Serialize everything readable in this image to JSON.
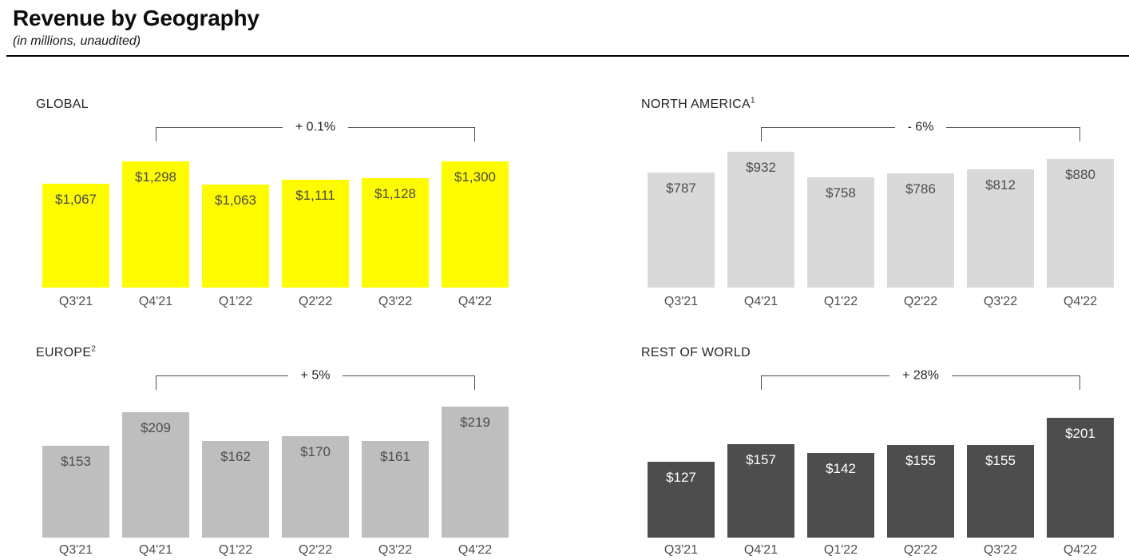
{
  "page": {
    "title": "Revenue by Geography",
    "subtitle": "(in millions, unaudited)"
  },
  "chart_data": [
    {
      "type": "bar",
      "region": "GLOBAL",
      "footnote_marker": "",
      "categories": [
        "Q3'21",
        "Q4'21",
        "Q1'22",
        "Q2'22",
        "Q3'22",
        "Q4'22"
      ],
      "values": [
        1067,
        1298,
        1063,
        1111,
        1128,
        1300
      ],
      "value_labels": [
        "$1,067",
        "$1,298",
        "$1,063",
        "$1,111",
        "$1,128",
        "$1,300"
      ],
      "growth_annotation": "+ 0.1%",
      "growth_span": {
        "from": "Q4'21",
        "to": "Q4'22"
      },
      "bar_color": "#FFFC00",
      "value_label_color": "#4A4A4A"
    },
    {
      "type": "bar",
      "region": "NORTH AMERICA",
      "footnote_marker": "1",
      "categories": [
        "Q3'21",
        "Q4'21",
        "Q1'22",
        "Q2'22",
        "Q3'22",
        "Q4'22"
      ],
      "values": [
        787,
        932,
        758,
        786,
        812,
        880
      ],
      "value_labels": [
        "$787",
        "$932",
        "$758",
        "$786",
        "$812",
        "$880"
      ],
      "growth_annotation": "- 6%",
      "growth_span": {
        "from": "Q4'21",
        "to": "Q4'22"
      },
      "bar_color": "#D9D9D9",
      "value_label_color": "#4D4D4D"
    },
    {
      "type": "bar",
      "region": "EUROPE",
      "footnote_marker": "2",
      "categories": [
        "Q3'21",
        "Q4'21",
        "Q1'22",
        "Q2'22",
        "Q3'22",
        "Q4'22"
      ],
      "values": [
        153,
        209,
        162,
        170,
        161,
        219
      ],
      "value_labels": [
        "$153",
        "$209",
        "$162",
        "$170",
        "$161",
        "$219"
      ],
      "growth_annotation": "+ 5%",
      "growth_span": {
        "from": "Q4'21",
        "to": "Q4'22"
      },
      "bar_color": "#BEBEBE",
      "value_label_color": "#4D4D4D"
    },
    {
      "type": "bar",
      "region": "REST OF WORLD",
      "footnote_marker": "",
      "categories": [
        "Q3'21",
        "Q4'21",
        "Q1'22",
        "Q2'22",
        "Q3'22",
        "Q4'22"
      ],
      "values": [
        127,
        157,
        142,
        155,
        155,
        201
      ],
      "value_labels": [
        "$127",
        "$157",
        "$142",
        "$155",
        "$155",
        "$201"
      ],
      "growth_annotation": "+ 28%",
      "growth_span": {
        "from": "Q4'21",
        "to": "Q4'22"
      },
      "bar_color": "#4D4D4D",
      "value_label_color": "#FFFFFF"
    }
  ]
}
